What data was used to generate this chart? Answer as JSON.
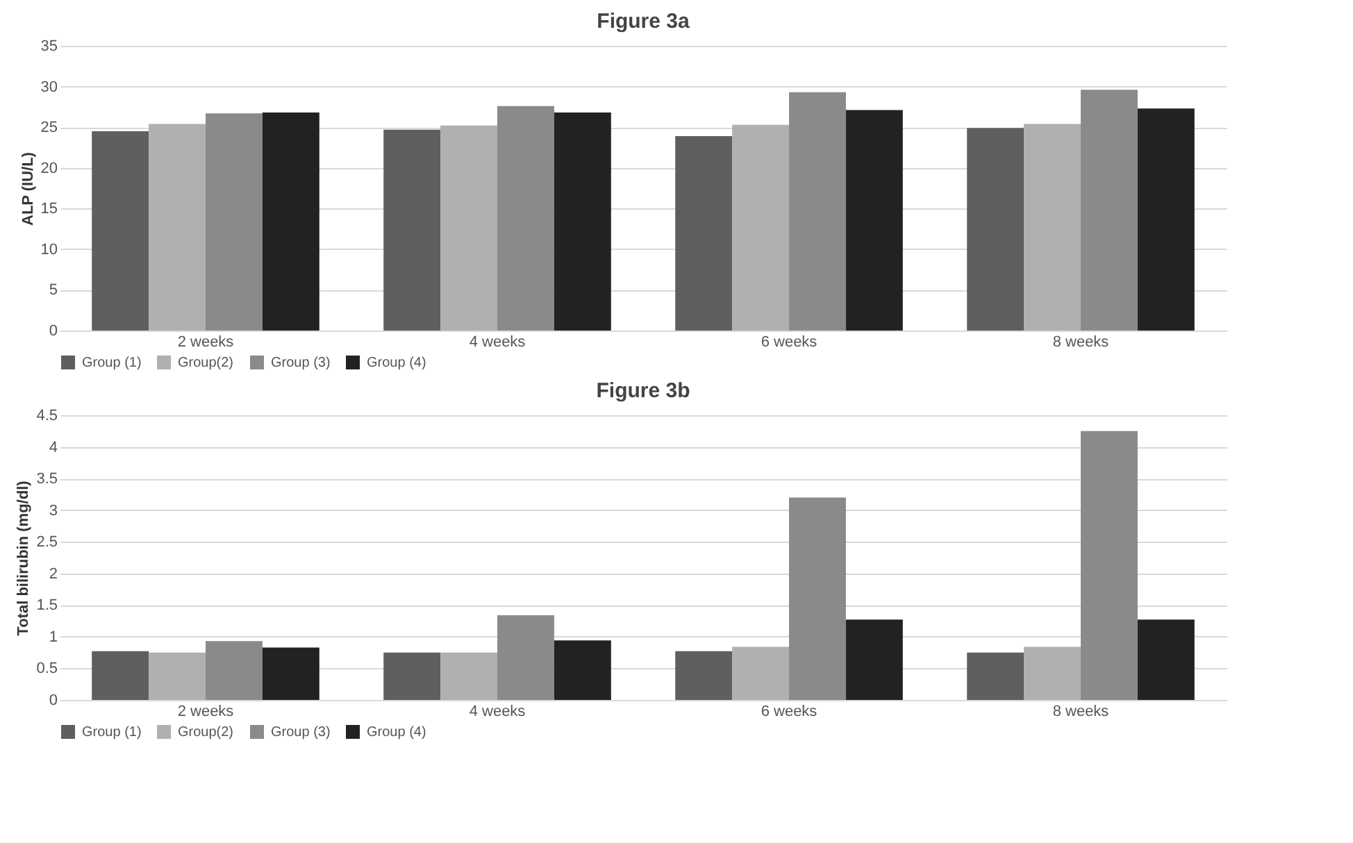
{
  "chart_data": [
    {
      "type": "bar",
      "title": "Figure 3a",
      "ylabel": "ALP (IU/L)",
      "categories": [
        "2 weeks",
        "4 weeks",
        "6 weeks",
        "8 weeks"
      ],
      "series": [
        {
          "name": "Group (1)",
          "color": "#5f5f5f",
          "values": [
            24.5,
            24.7,
            23.9,
            24.9
          ]
        },
        {
          "name": "Group(2)",
          "color": "#b0b0b0",
          "values": [
            25.4,
            25.2,
            25.3,
            25.4
          ]
        },
        {
          "name": "Group (3)",
          "color": "#8a8a8a",
          "values": [
            26.7,
            27.6,
            29.3,
            29.6
          ]
        },
        {
          "name": "Group (4)",
          "color": "#222222",
          "values": [
            26.8,
            26.8,
            27.1,
            27.3
          ]
        }
      ],
      "ylim": [
        0,
        35
      ],
      "yticks": [
        0,
        5,
        10,
        15,
        20,
        25,
        30,
        35
      ],
      "grid": "y",
      "legend": "bottom"
    },
    {
      "type": "bar",
      "title": "Figure 3b",
      "ylabel": "Total bilirubin (mg/dl)",
      "categories": [
        "2 weeks",
        "4 weeks",
        "6 weeks",
        "8 weeks"
      ],
      "series": [
        {
          "name": "Group (1)",
          "color": "#5f5f5f",
          "values": [
            0.77,
            0.75,
            0.77,
            0.75
          ]
        },
        {
          "name": "Group(2)",
          "color": "#b0b0b0",
          "values": [
            0.75,
            0.75,
            0.84,
            0.84
          ]
        },
        {
          "name": "Group (3)",
          "color": "#8a8a8a",
          "values": [
            0.93,
            1.34,
            3.2,
            4.25
          ]
        },
        {
          "name": "Group (4)",
          "color": "#222222",
          "values": [
            0.83,
            0.94,
            1.27,
            1.27
          ]
        }
      ],
      "ylim": [
        0,
        4.5
      ],
      "yticks": [
        0,
        0.5,
        1,
        1.5,
        2,
        2.5,
        3,
        3.5,
        4,
        4.5
      ],
      "grid": "y",
      "legend": "bottom"
    }
  ]
}
